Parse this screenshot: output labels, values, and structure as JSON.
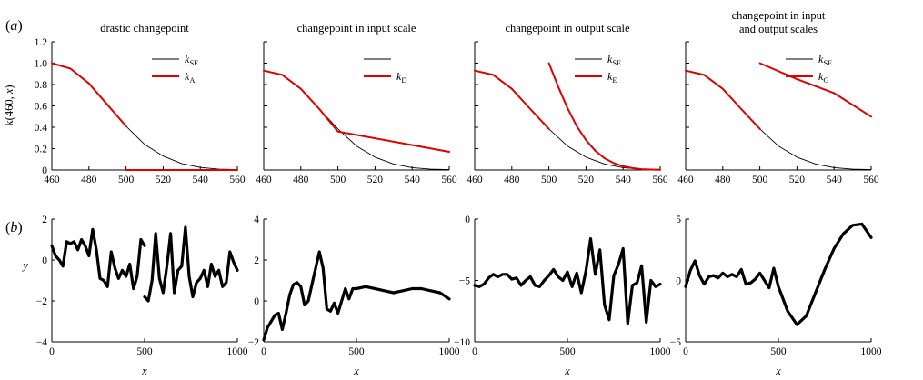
{
  "figure": {
    "panel_a": "a",
    "panel_b": "b"
  },
  "chart_data": [
    {
      "type": "line",
      "row": "a",
      "title": "drastic changepoint",
      "ylabel_base": "k(460, ",
      "ylabel_var": "x",
      "ylabel_close": ")",
      "xlim": [
        460,
        560
      ],
      "ylim": [
        0,
        1.2
      ],
      "xticks": [
        "460",
        "480",
        "500",
        "520",
        "540",
        "560"
      ],
      "yticks": [
        "0",
        "0.2",
        "0.4",
        "0.6",
        "0.8",
        "1.0",
        "1.2"
      ],
      "legend": [
        "k_SE",
        "k_A"
      ],
      "series": [
        {
          "name": "k_SE",
          "color": "#000000",
          "x": [
            460,
            470,
            480,
            490,
            500,
            510,
            520,
            530,
            540,
            550,
            560
          ],
          "y": [
            1.0,
            0.95,
            0.81,
            0.61,
            0.41,
            0.24,
            0.13,
            0.06,
            0.024,
            0.008,
            0.003
          ]
        },
        {
          "name": "k_A",
          "color": "#e00000",
          "x": [
            460,
            470,
            480,
            490,
            500
          ],
          "y": [
            1.0,
            0.95,
            0.81,
            0.61,
            0.41
          ]
        },
        {
          "name": "k_A",
          "color": "#e00000",
          "x": [
            500,
            560
          ],
          "y": [
            0.0,
            0.0
          ]
        }
      ]
    },
    {
      "type": "line",
      "row": "a",
      "title": "changepoint in input scale",
      "xlim": [
        460,
        560
      ],
      "ylim": [
        0,
        1.2
      ],
      "xticks": [
        "460",
        "480",
        "500",
        "520",
        "540",
        "560"
      ],
      "legend": [
        "",
        "k_D"
      ],
      "series": [
        {
          "name": "",
          "color": "#000000",
          "x": [
            460,
            470,
            480,
            490,
            500,
            510,
            520,
            530,
            540,
            550,
            560
          ],
          "y": [
            0.93,
            0.89,
            0.76,
            0.57,
            0.385,
            0.225,
            0.12,
            0.056,
            0.022,
            0.008,
            0.003
          ]
        },
        {
          "name": "k_D",
          "color": "#e00000",
          "x": [
            460,
            470,
            480,
            490,
            500,
            560
          ],
          "y": [
            0.93,
            0.89,
            0.76,
            0.57,
            0.36,
            0.17
          ]
        }
      ]
    },
    {
      "type": "line",
      "row": "a",
      "title": "changepoint in output scale",
      "xlim": [
        460,
        560
      ],
      "ylim": [
        0,
        1.2
      ],
      "xticks": [
        "460",
        "480",
        "500",
        "520",
        "540",
        "560"
      ],
      "legend": [
        "k_SE",
        "k_E"
      ],
      "series": [
        {
          "name": "k_SE",
          "color": "#000000",
          "x": [
            460,
            470,
            480,
            490,
            500,
            510,
            520,
            530,
            540,
            550,
            560
          ],
          "y": [
            0.93,
            0.89,
            0.76,
            0.57,
            0.385,
            0.225,
            0.12,
            0.056,
            0.022,
            0.008,
            0.003
          ]
        },
        {
          "name": "k_E",
          "color": "#e00000",
          "x": [
            460,
            470,
            480,
            490,
            500
          ],
          "y": [
            0.93,
            0.89,
            0.76,
            0.57,
            0.385
          ]
        },
        {
          "name": "k_E",
          "color": "#e00000",
          "x": [
            500,
            505,
            510,
            515,
            520,
            525,
            530,
            535,
            540,
            545,
            550,
            555,
            560
          ],
          "y": [
            1.0,
            0.78,
            0.58,
            0.41,
            0.28,
            0.18,
            0.11,
            0.065,
            0.035,
            0.018,
            0.008,
            0.004,
            0.002
          ]
        }
      ]
    },
    {
      "type": "line",
      "row": "a",
      "title_lines": [
        "changepoint in input",
        "and output scales"
      ],
      "xlim": [
        460,
        560
      ],
      "ylim": [
        0,
        1.2
      ],
      "xticks": [
        "460",
        "480",
        "500",
        "520",
        "540",
        "560"
      ],
      "legend": [
        "k_SE",
        "k_G"
      ],
      "series": [
        {
          "name": "k_SE",
          "color": "#000000",
          "x": [
            460,
            470,
            480,
            490,
            500,
            510,
            520,
            530,
            540,
            550,
            560
          ],
          "y": [
            0.93,
            0.89,
            0.76,
            0.57,
            0.385,
            0.225,
            0.12,
            0.056,
            0.022,
            0.008,
            0.003
          ]
        },
        {
          "name": "k_G",
          "color": "#e00000",
          "x": [
            460,
            470,
            480,
            490,
            500
          ],
          "y": [
            0.93,
            0.89,
            0.76,
            0.57,
            0.385
          ]
        },
        {
          "name": "k_G",
          "color": "#e00000",
          "x": [
            500,
            520,
            540,
            560
          ],
          "y": [
            1.0,
            0.85,
            0.72,
            0.5
          ]
        }
      ]
    },
    {
      "type": "line",
      "row": "b",
      "xlabel": "x",
      "ylabel": "y",
      "xlim": [
        0,
        1000
      ],
      "ylim": [
        -4,
        2
      ],
      "xticks": [
        "0",
        "500",
        "1000"
      ],
      "yticks": [
        "−4",
        "−2",
        "0",
        "2"
      ],
      "series": [
        {
          "name": "",
          "color": "#000000",
          "x": [
            0,
            20,
            40,
            60,
            80,
            100,
            120,
            140,
            160,
            180,
            200,
            220,
            240,
            260,
            280,
            300,
            320,
            340,
            360,
            380,
            400,
            420,
            440,
            460,
            480,
            500
          ],
          "y": [
            0.7,
            0.2,
            0.0,
            -0.3,
            0.9,
            0.8,
            0.9,
            0.5,
            1.0,
            0.7,
            0.2,
            1.5,
            0.5,
            -0.9,
            -1.0,
            -1.3,
            0.4,
            -0.4,
            -0.9,
            -0.5,
            -0.8,
            -0.2,
            -1.4,
            -0.8,
            1.0,
            0.7
          ]
        },
        {
          "name": "",
          "color": "#000000",
          "x": [
            500,
            520,
            540,
            560,
            580,
            600,
            620,
            640,
            660,
            680,
            700,
            720,
            740,
            760,
            780,
            800,
            820,
            840,
            860,
            880,
            900,
            920,
            940,
            960,
            980,
            1000
          ],
          "y": [
            -1.8,
            -2.0,
            -1.0,
            1.3,
            -0.9,
            -1.6,
            -0.3,
            1.3,
            -1.6,
            -0.5,
            -0.3,
            1.6,
            -0.8,
            -1.8,
            -1.1,
            -0.9,
            -0.5,
            -1.3,
            -0.2,
            -0.8,
            -0.5,
            -1.3,
            -1.1,
            0.4,
            -0.1,
            -0.5
          ]
        }
      ]
    },
    {
      "type": "line",
      "row": "b",
      "xlabel": "x",
      "xlim": [
        0,
        1000
      ],
      "ylim": [
        -2,
        4
      ],
      "xticks": [
        "0",
        "500",
        "1000"
      ],
      "yticks": [
        "−2",
        "0",
        "2",
        "4"
      ],
      "series": [
        {
          "name": "",
          "color": "#000000",
          "x": [
            0,
            20,
            40,
            60,
            80,
            100,
            120,
            140,
            160,
            180,
            200,
            220,
            240,
            260,
            280,
            300,
            320,
            340,
            360,
            380,
            400,
            420,
            440,
            460,
            480,
            500,
            550,
            600,
            650,
            700,
            750,
            800,
            850,
            900,
            950,
            1000
          ],
          "y": [
            -1.9,
            -1.3,
            -1.0,
            -0.7,
            -0.6,
            -1.4,
            -0.6,
            0.3,
            0.8,
            0.9,
            0.7,
            -0.2,
            0.0,
            0.8,
            1.6,
            2.4,
            1.6,
            -0.4,
            -0.5,
            -0.1,
            -0.6,
            0.0,
            0.6,
            0.1,
            0.6,
            0.6,
            0.7,
            0.6,
            0.5,
            0.4,
            0.5,
            0.6,
            0.6,
            0.5,
            0.4,
            0.1
          ]
        }
      ]
    },
    {
      "type": "line",
      "row": "b",
      "xlabel": "x",
      "xlim": [
        0,
        1000
      ],
      "ylim": [
        -10,
        0
      ],
      "xticks": [
        "0",
        "500",
        "1000"
      ],
      "yticks": [
        "−10",
        "−5",
        "0"
      ],
      "series": [
        {
          "name": "",
          "color": "#000000",
          "x": [
            0,
            25,
            50,
            75,
            100,
            125,
            150,
            175,
            200,
            225,
            250,
            275,
            300,
            325,
            350,
            375,
            400,
            425,
            450,
            475,
            500,
            525,
            550,
            575,
            600,
            625,
            650,
            675,
            700,
            725,
            750,
            775,
            800,
            825,
            850,
            875,
            900,
            925,
            950,
            975,
            1000
          ],
          "y": [
            -5.4,
            -5.5,
            -5.3,
            -4.8,
            -4.5,
            -4.7,
            -4.5,
            -4.5,
            -4.9,
            -4.8,
            -5.4,
            -5.0,
            -4.7,
            -5.4,
            -5.5,
            -5.0,
            -4.6,
            -4.1,
            -4.7,
            -5.0,
            -4.3,
            -5.5,
            -4.4,
            -6.0,
            -4.2,
            -1.6,
            -4.5,
            -2.5,
            -7.0,
            -8.2,
            -4.6,
            -3.7,
            -2.4,
            -8.5,
            -5.4,
            -5.2,
            -3.8,
            -8.4,
            -5.0,
            -5.5,
            -5.3
          ]
        }
      ]
    },
    {
      "type": "line",
      "row": "b",
      "xlabel": "x",
      "xlim": [
        0,
        1000
      ],
      "ylim": [
        -5,
        5
      ],
      "xticks": [
        "0",
        "500",
        "1000"
      ],
      "yticks": [
        "−5",
        "0",
        "5"
      ],
      "series": [
        {
          "name": "",
          "color": "#000000",
          "x": [
            0,
            25,
            50,
            75,
            100,
            125,
            150,
            175,
            200,
            225,
            250,
            275,
            300,
            325,
            350,
            375,
            400,
            425,
            450,
            475,
            500,
            550,
            600,
            650,
            700,
            750,
            800,
            850,
            900,
            950,
            1000
          ],
          "y": [
            -0.5,
            0.8,
            1.6,
            0.4,
            -0.3,
            0.3,
            0.4,
            0.2,
            0.6,
            0.3,
            0.5,
            0.3,
            0.9,
            -0.3,
            -0.2,
            0.1,
            0.6,
            0.0,
            -0.6,
            1.0,
            -0.5,
            -2.5,
            -3.6,
            -2.9,
            -1.0,
            0.9,
            2.6,
            3.8,
            4.5,
            4.6,
            3.5
          ]
        }
      ]
    }
  ]
}
